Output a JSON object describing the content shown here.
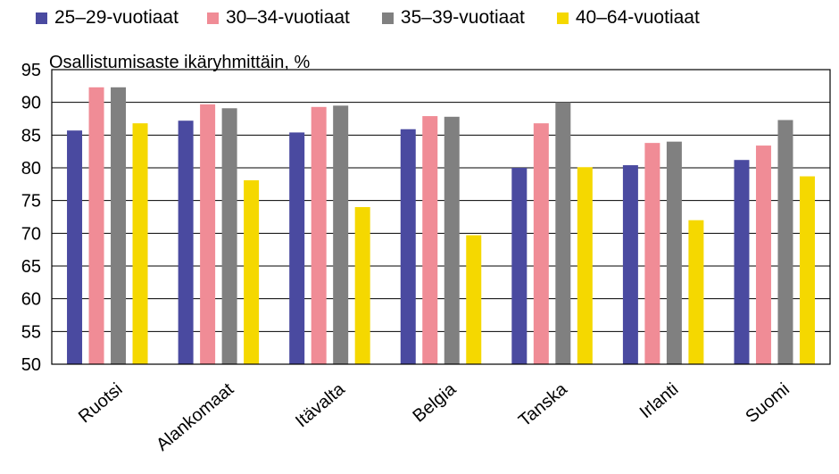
{
  "chart_data": {
    "type": "bar",
    "ylabel": "Osallistumisaste ikäryhmittäin, %",
    "xlabel": "",
    "ylim": [
      50,
      95
    ],
    "yticks": [
      95,
      90,
      85,
      80,
      75,
      70,
      65,
      60,
      55,
      50
    ],
    "grid": true,
    "legend_position": "top",
    "categories": [
      "Ruotsi",
      "Alankomaat",
      "Itävalta",
      "Belgia",
      "Tanska",
      "Irlanti",
      "Suomi"
    ],
    "series": [
      {
        "name": "25–29-vuotiaat",
        "color": "#4a4aa0",
        "values": [
          85.7,
          87.2,
          85.4,
          85.9,
          80.0,
          80.4,
          81.2
        ]
      },
      {
        "name": "30–34-vuotiaat",
        "color": "#f08c96",
        "values": [
          92.3,
          89.7,
          89.3,
          87.9,
          86.8,
          83.8,
          83.4
        ]
      },
      {
        "name": "35–39-vuotiaat",
        "color": "#808080",
        "values": [
          92.3,
          89.1,
          89.5,
          87.8,
          90.0,
          84.0,
          87.3
        ]
      },
      {
        "name": "40–64-vuotiaat",
        "color": "#f5d800",
        "values": [
          86.8,
          78.1,
          74.0,
          69.7,
          80.1,
          72.0,
          78.7
        ]
      }
    ]
  }
}
